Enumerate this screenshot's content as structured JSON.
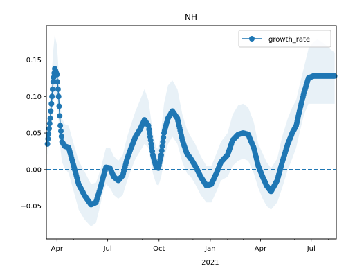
{
  "chart_data": {
    "type": "line",
    "title": "NH",
    "xlabel": "",
    "ylabel": "",
    "x_tick_labels": [
      "Apr",
      "Jul",
      "Oct",
      "Jan",
      "Apr",
      "Jul"
    ],
    "x_tick_sublabel": "2021",
    "x_tick_dates": [
      "2020-04-01",
      "2020-07-01",
      "2020-10-01",
      "2021-01-01",
      "2021-04-01",
      "2021-07-01"
    ],
    "xlim": [
      "2020-03-13",
      "2021-08-15"
    ],
    "y_tick_labels": [
      "−0.05",
      "0.00",
      "0.05",
      "0.10",
      "0.15"
    ],
    "y_ticks": [
      -0.05,
      0.0,
      0.05,
      0.1,
      0.15
    ],
    "ylim": [
      -0.095,
      0.197
    ],
    "grid": false,
    "legend": {
      "position": "top-right",
      "entries": [
        "growth_rate"
      ]
    },
    "reference_line": {
      "y": 0.0,
      "style": "dashed"
    },
    "colors": {
      "series": "#1f77b4",
      "band": "#1f77b4"
    },
    "series": [
      {
        "name": "growth_rate",
        "x": [
          "2020-03-15",
          "2020-03-20",
          "2020-03-25",
          "2020-03-28",
          "2020-04-01",
          "2020-04-04",
          "2020-04-07",
          "2020-04-10",
          "2020-04-15",
          "2020-04-22",
          "2020-05-01",
          "2020-05-10",
          "2020-05-20",
          "2020-06-01",
          "2020-06-10",
          "2020-06-18",
          "2020-06-23",
          "2020-06-28",
          "2020-07-05",
          "2020-07-12",
          "2020-07-20",
          "2020-07-28",
          "2020-08-05",
          "2020-08-12",
          "2020-08-20",
          "2020-08-28",
          "2020-09-05",
          "2020-09-12",
          "2020-09-20",
          "2020-09-26",
          "2020-09-30",
          "2020-10-05",
          "2020-10-10",
          "2020-10-17",
          "2020-10-25",
          "2020-11-03",
          "2020-11-12",
          "2020-11-20",
          "2020-11-27",
          "2020-12-05",
          "2020-12-15",
          "2020-12-25",
          "2021-01-03",
          "2021-01-12",
          "2021-01-20",
          "2021-02-01",
          "2021-02-10",
          "2021-02-20",
          "2021-03-01",
          "2021-03-10",
          "2021-03-20",
          "2021-03-28",
          "2021-04-05",
          "2021-04-12",
          "2021-04-20",
          "2021-05-01",
          "2021-05-10",
          "2021-05-20",
          "2021-05-28",
          "2021-06-04",
          "2021-06-10",
          "2021-06-18",
          "2021-06-26",
          "2021-07-05",
          "2021-07-12",
          "2021-07-20",
          "2021-07-28",
          "2021-08-04",
          "2021-08-12"
        ],
        "y": [
          0.035,
          0.07,
          0.12,
          0.138,
          0.13,
          0.1,
          0.06,
          0.038,
          0.032,
          0.03,
          0.005,
          -0.02,
          -0.035,
          -0.048,
          -0.045,
          -0.025,
          -0.01,
          0.003,
          0.002,
          -0.01,
          -0.015,
          -0.008,
          0.015,
          0.03,
          0.045,
          0.055,
          0.068,
          0.06,
          0.02,
          0.003,
          0.002,
          0.02,
          0.05,
          0.07,
          0.08,
          0.07,
          0.04,
          0.022,
          0.015,
          0.005,
          -0.01,
          -0.022,
          -0.02,
          -0.005,
          0.01,
          0.02,
          0.04,
          0.048,
          0.05,
          0.048,
          0.03,
          0.005,
          -0.01,
          -0.022,
          -0.03,
          -0.015,
          0.01,
          0.035,
          0.05,
          0.06,
          0.08,
          0.105,
          0.125,
          0.128,
          0.128,
          0.128,
          0.128,
          0.128,
          0.128
        ],
        "lower": [
          0.02,
          0.04,
          0.09,
          0.1,
          0.095,
          0.065,
          0.03,
          0.01,
          0.002,
          -0.005,
          -0.03,
          -0.055,
          -0.068,
          -0.078,
          -0.073,
          -0.048,
          -0.03,
          -0.02,
          -0.025,
          -0.035,
          -0.04,
          -0.035,
          -0.015,
          0.0,
          0.015,
          0.025,
          0.035,
          0.03,
          -0.005,
          -0.02,
          -0.022,
          -0.01,
          0.015,
          0.035,
          0.045,
          0.035,
          0.01,
          -0.005,
          -0.01,
          -0.02,
          -0.035,
          -0.045,
          -0.045,
          -0.03,
          -0.015,
          -0.01,
          0.005,
          0.012,
          0.015,
          0.012,
          -0.005,
          -0.025,
          -0.04,
          -0.05,
          -0.055,
          -0.045,
          -0.025,
          0.0,
          0.015,
          0.03,
          0.05,
          0.075,
          0.09,
          0.09,
          0.09,
          0.09,
          0.09,
          0.09,
          0.09
        ],
        "upper": [
          0.05,
          0.1,
          0.16,
          0.185,
          0.17,
          0.135,
          0.09,
          0.07,
          0.062,
          0.06,
          0.035,
          0.012,
          -0.002,
          -0.02,
          -0.018,
          0.0,
          0.015,
          0.03,
          0.03,
          0.018,
          0.012,
          0.02,
          0.045,
          0.062,
          0.08,
          0.095,
          0.11,
          0.095,
          0.05,
          0.03,
          0.028,
          0.055,
          0.09,
          0.115,
          0.122,
          0.11,
          0.075,
          0.055,
          0.045,
          0.035,
          0.018,
          0.005,
          0.005,
          0.022,
          0.038,
          0.05,
          0.075,
          0.088,
          0.09,
          0.085,
          0.065,
          0.035,
          0.022,
          0.01,
          0.002,
          0.015,
          0.045,
          0.07,
          0.085,
          0.095,
          0.115,
          0.14,
          0.165,
          0.175,
          0.178,
          0.175,
          0.17,
          0.165,
          0.16
        ]
      }
    ]
  }
}
